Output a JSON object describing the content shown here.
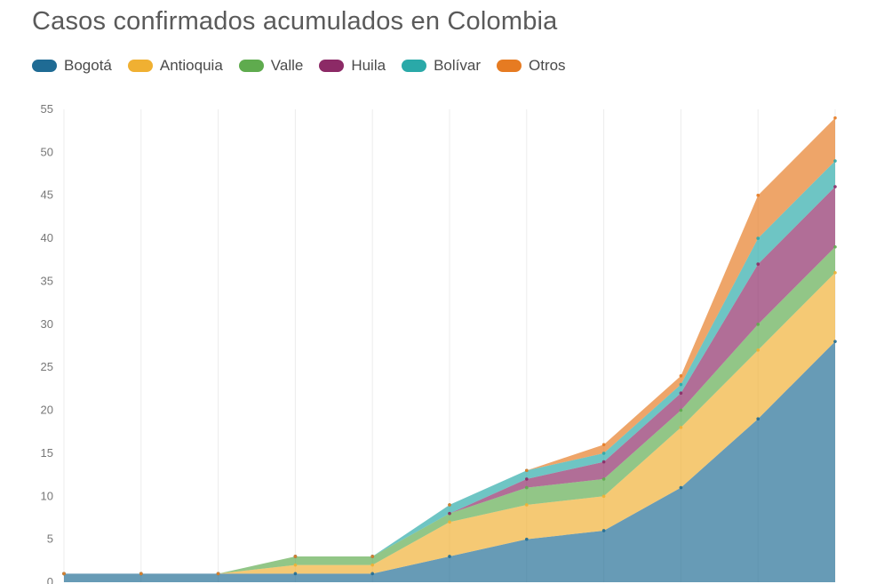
{
  "chart_data": {
    "type": "area",
    "stacked": true,
    "title": "Casos confirmados acumulados en Colombia",
    "xlabel": "",
    "ylabel": "",
    "ylim": [
      0,
      55
    ],
    "yticks": [
      "0",
      "5",
      "10",
      "15",
      "20",
      "25",
      "30",
      "35",
      "40",
      "45",
      "50",
      "55"
    ],
    "x": [
      1,
      2,
      3,
      4,
      5,
      6,
      7,
      8,
      9,
      10,
      11
    ],
    "grid": "vertical",
    "legend": "top-left",
    "series": [
      {
        "name": "Bogotá",
        "color": "#1f6b94",
        "values": [
          1,
          1,
          1,
          1,
          1,
          3,
          5,
          6,
          11,
          19,
          28
        ]
      },
      {
        "name": "Antioquia",
        "color": "#f0b032",
        "values": [
          0,
          0,
          0,
          1,
          1,
          4,
          4,
          4,
          7,
          8,
          8
        ]
      },
      {
        "name": "Valle",
        "color": "#5fab4e",
        "values": [
          0,
          0,
          0,
          1,
          1,
          1,
          2,
          2,
          2,
          3,
          3
        ]
      },
      {
        "name": "Huila",
        "color": "#8c2a66",
        "values": [
          0,
          0,
          0,
          0,
          0,
          0,
          1,
          2,
          2,
          7,
          7
        ]
      },
      {
        "name": "Bolívar",
        "color": "#2aa9a8",
        "values": [
          0,
          0,
          0,
          0,
          0,
          1,
          1,
          1,
          1,
          3,
          3
        ]
      },
      {
        "name": "Otros",
        "color": "#e67b22",
        "values": [
          0,
          0,
          0,
          0,
          0,
          0,
          0,
          1,
          1,
          5,
          5
        ]
      }
    ]
  }
}
